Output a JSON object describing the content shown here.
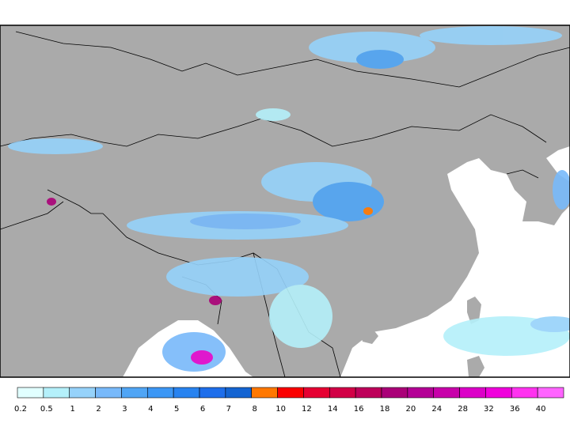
{
  "legend": {
    "ticks": [
      0.2,
      0.5,
      1,
      2,
      3,
      4,
      5,
      6,
      7,
      8,
      10,
      12,
      14,
      16,
      18,
      20,
      24,
      28,
      32,
      36,
      40
    ],
    "colors": [
      "#e1ffff",
      "#b4f0fa",
      "#96d2fa",
      "#78b9fa",
      "#50a5f5",
      "#3c97f5",
      "#2883f0",
      "#1e6eeb",
      "#1464d2",
      "#ff7800",
      "#fa0000",
      "#e60032",
      "#d20046",
      "#be005a",
      "#aa0078",
      "#b40096",
      "#c800aa",
      "#dc00c8",
      "#f000dc",
      "#ff32f0",
      "#ff64ff"
    ]
  }
}
